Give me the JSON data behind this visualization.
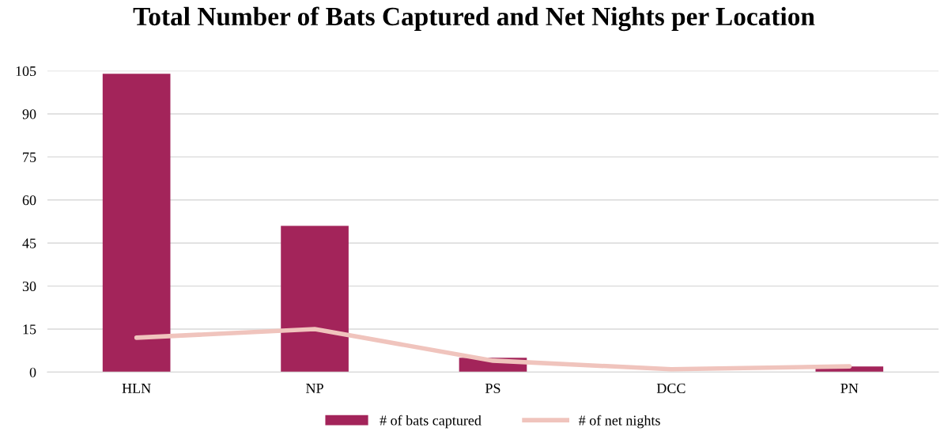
{
  "chart_data": {
    "type": "bar",
    "title": "Total Number of Bats Captured and Net Nights per Location",
    "categories": [
      "HLN",
      "NP",
      "PS",
      "DCC",
      "PN"
    ],
    "series": [
      {
        "name": "# of bats captured",
        "color": "#a3245a",
        "values": [
          104,
          51,
          5,
          0,
          2
        ]
      },
      {
        "name": "# of net nights",
        "type": "line",
        "color": "#f0c4bd",
        "values": [
          12,
          15,
          4,
          1,
          2
        ]
      }
    ],
    "ylim": [
      0,
      105
    ],
    "yticks": [
      0,
      15,
      30,
      45,
      60,
      75,
      90,
      105
    ],
    "grid": "y",
    "legend": "bottom",
    "marker": "none",
    "line_style": "solid"
  }
}
